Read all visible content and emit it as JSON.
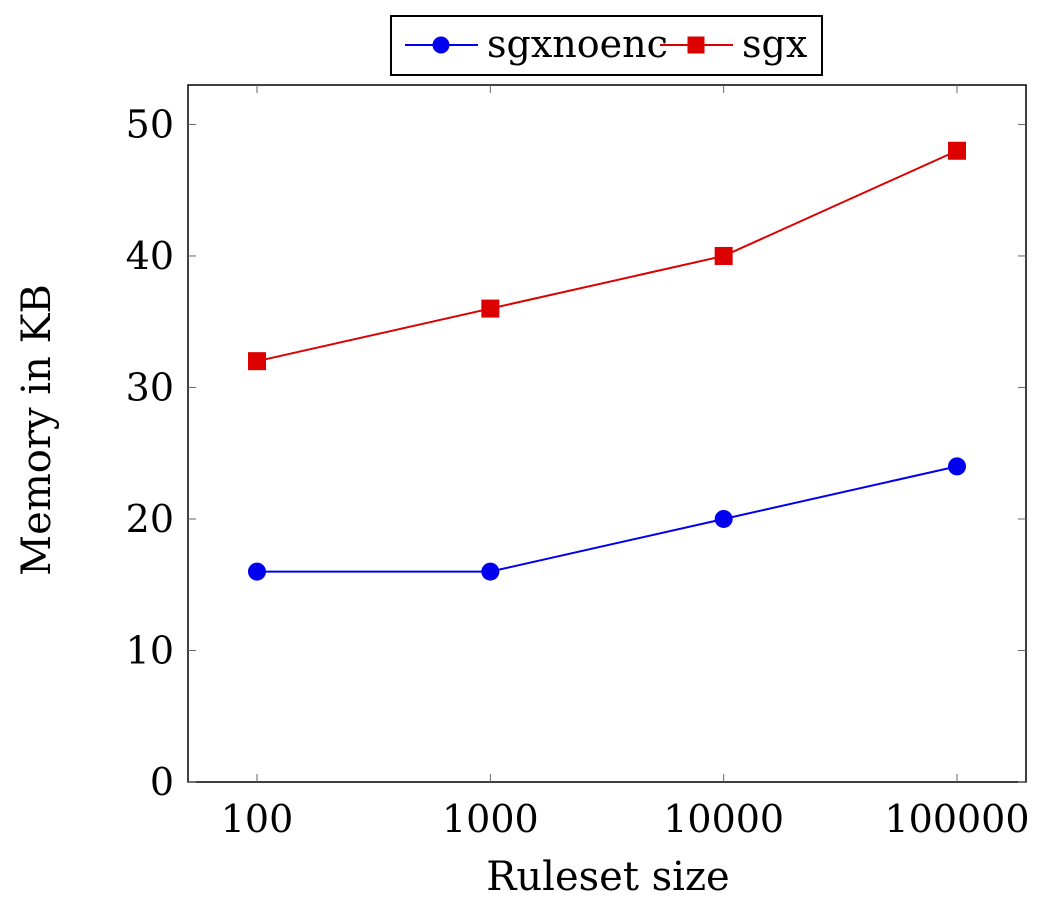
{
  "chart_data": {
    "type": "line",
    "title": "",
    "xlabel": "Ruleset size",
    "ylabel": "Memory in KB",
    "x_scale": "log",
    "categories": [
      "100",
      "1000",
      "10000",
      "100000"
    ],
    "x": [
      100,
      1000,
      10000,
      100000
    ],
    "ylim": [
      0,
      53
    ],
    "yticks": [
      0,
      10,
      20,
      30,
      40,
      50
    ],
    "xticks": [
      100,
      1000,
      10000,
      100000
    ],
    "grid": false,
    "legend_position": "top-center",
    "series": [
      {
        "name": "sgxnoenc",
        "values": [
          16,
          16,
          20,
          24
        ],
        "color": "#0000ee",
        "marker": "circle"
      },
      {
        "name": "sgx",
        "values": [
          32,
          36,
          40,
          48
        ],
        "color": "#dd0000",
        "marker": "square"
      }
    ]
  }
}
